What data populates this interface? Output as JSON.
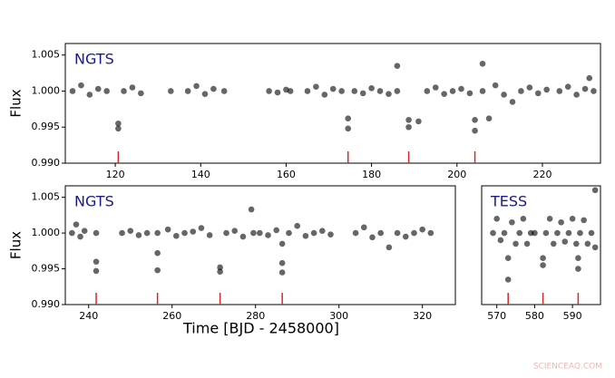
{
  "chart_data": [
    {
      "type": "scatter",
      "label": "NGTS",
      "ylabel": "Flux",
      "color": "#000000",
      "xlim": [
        108.3,
        233.6
      ],
      "ylim": [
        0.99,
        1.0066
      ],
      "xticks": [
        120,
        140,
        160,
        180,
        200,
        220
      ],
      "yticks": [
        {
          "value": 0.99,
          "label": "0.990"
        },
        0.995,
        {
          "value": 1,
          "label": "1.000"
        },
        1.005
      ],
      "x": [
        110,
        112,
        114,
        116,
        118,
        120.7,
        120.7,
        122,
        124,
        126,
        133,
        137,
        139,
        141,
        143,
        145.5,
        156,
        158,
        160,
        161,
        165,
        167,
        169,
        171,
        173,
        174.5,
        174.5,
        176,
        178,
        180,
        182,
        184,
        186,
        186,
        188.7,
        188.7,
        191,
        193,
        195,
        197,
        199,
        201,
        203,
        204.2,
        204.2,
        206,
        206,
        207.5,
        209,
        211,
        213,
        215,
        217,
        219,
        221,
        224,
        226,
        228,
        230,
        231,
        232
      ],
      "y": [
        1.0,
        1.0008,
        0.9995,
        1.0003,
        1.0,
        0.9955,
        0.9948,
        1.0,
        1.0005,
        0.9997,
        1.0,
        1.0,
        1.0007,
        0.9996,
        1.0003,
        1.0,
        1.0,
        0.9998,
        1.0002,
        1.0,
        1.0,
        1.0006,
        0.9995,
        1.0003,
        1.0,
        0.9962,
        0.9948,
        1.0,
        0.9997,
        1.0004,
        1.0,
        0.9996,
        1.0035,
        1.0,
        0.996,
        0.995,
        0.9958,
        1.0,
        1.0005,
        0.9996,
        1.0,
        1.0003,
        0.9997,
        0.996,
        0.9945,
        1.0038,
        1.0,
        0.9962,
        1.0008,
        0.9995,
        0.9985,
        1.0,
        1.0005,
        0.9997,
        1.0002,
        1.0,
        1.0006,
        0.9995,
        1.0003,
        1.0018,
        1.0
      ],
      "transits": [
        120.7,
        174.5,
        188.7,
        204.2
      ],
      "transit_color": "#d62728"
    },
    {
      "type": "scatter",
      "label": "NGTS",
      "ylabel": "Flux",
      "xlabel": "Time [BJD - 2458000]",
      "color": "#000000",
      "xlim": [
        234.4,
        327.9
      ],
      "ylim": [
        0.99,
        1.0066
      ],
      "xticks": [
        240,
        260,
        280,
        300,
        320
      ],
      "yticks": [
        {
          "value": 0.99,
          "label": "0.990"
        },
        0.995,
        {
          "value": 1,
          "label": "1.000"
        },
        1.005
      ],
      "x": [
        236,
        237,
        238,
        239,
        241.8,
        241.8,
        241.8,
        248,
        250,
        252,
        254,
        256.5,
        256.5,
        256.5,
        259,
        261,
        263,
        265,
        267,
        269,
        271.5,
        271.5,
        273,
        275,
        277,
        279,
        279.5,
        281,
        283,
        285,
        286.4,
        286.4,
        286.4,
        288,
        290,
        292,
        294,
        296,
        298,
        304,
        306,
        308,
        310,
        312,
        314,
        316,
        318,
        320,
        322
      ],
      "y": [
        1.0,
        1.0012,
        0.9995,
        1.0003,
        1.0,
        0.996,
        0.9947,
        1.0,
        1.0003,
        0.9997,
        1.0,
        0.9972,
        0.9948,
        1.0,
        1.0005,
        0.9996,
        1.0,
        1.0002,
        1.0007,
        0.9997,
        0.9952,
        0.9946,
        1.0,
        1.0003,
        0.9995,
        1.0033,
        1.0,
        1.0,
        0.9997,
        1.0004,
        0.9985,
        0.9958,
        0.9945,
        1.0,
        1.001,
        0.9996,
        1.0,
        1.0003,
        0.9998,
        1.0,
        1.0008,
        0.9994,
        1.0,
        0.998,
        1.0,
        0.9995,
        1.0,
        1.0005,
        1.0
      ],
      "transits": [
        241.8,
        256.5,
        271.5,
        286.4
      ],
      "transit_color": "#d62728"
    },
    {
      "type": "scatter",
      "label": "TESS",
      "color": "#000000",
      "xlim": [
        566,
        597.4
      ],
      "ylim": [
        0.99,
        1.0066
      ],
      "xticks": [
        570,
        580,
        590
      ],
      "x": [
        569,
        570,
        571,
        572,
        573,
        573,
        574,
        575,
        576,
        577,
        578,
        579,
        580,
        582.2,
        582.2,
        583,
        584,
        585,
        586,
        587,
        588,
        589,
        590,
        591,
        591.5,
        591.5,
        592,
        593,
        594,
        595,
        596,
        596
      ],
      "y": [
        1.0,
        1.002,
        0.999,
        1.0,
        0.9965,
        0.9935,
        1.0015,
        0.9985,
        1.0,
        1.002,
        0.9985,
        1.0,
        1.0,
        0.9965,
        0.9955,
        1.0,
        1.002,
        0.9985,
        1.0,
        1.0015,
        0.9988,
        1.0,
        1.002,
        0.9985,
        0.9965,
        0.995,
        1.0,
        1.0018,
        0.9985,
        1.0,
        1.006,
        0.998
      ],
      "transits": [
        573,
        582.2,
        591.5
      ],
      "transit_color": "#d62728"
    }
  ],
  "watermark": "SCIENCEAQ.COM"
}
